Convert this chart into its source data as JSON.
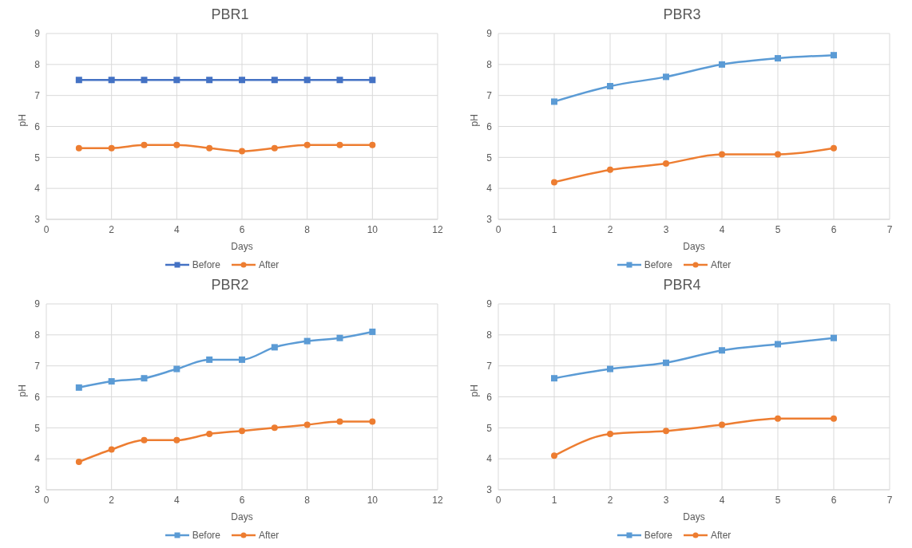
{
  "chart_data": [
    {
      "type": "line",
      "title": "PBR1",
      "xlabel": "Days",
      "ylabel": "pH",
      "x": [
        1,
        2,
        3,
        4,
        5,
        6,
        7,
        8,
        9,
        10
      ],
      "xlim": [
        0,
        12
      ],
      "xticks": [
        0,
        2,
        4,
        6,
        8,
        10,
        12
      ],
      "ylim": [
        3,
        9
      ],
      "yticks": [
        3,
        4,
        5,
        6,
        7,
        8,
        9
      ],
      "grid": true,
      "legend": "bottom",
      "series": [
        {
          "name": "Before",
          "color": "#4472c4",
          "marker": "square",
          "values": [
            7.5,
            7.5,
            7.5,
            7.5,
            7.5,
            7.5,
            7.5,
            7.5,
            7.5,
            7.5
          ]
        },
        {
          "name": "After",
          "color": "#ed7d31",
          "marker": "circle",
          "values": [
            5.3,
            5.3,
            5.4,
            5.4,
            5.3,
            5.2,
            5.3,
            5.4,
            5.4,
            5.4
          ]
        }
      ]
    },
    {
      "type": "line",
      "title": "PBR3",
      "xlabel": "Days",
      "ylabel": "pH",
      "x": [
        1,
        2,
        3,
        4,
        5,
        6
      ],
      "xlim": [
        0,
        7
      ],
      "xticks": [
        0,
        1,
        2,
        3,
        4,
        5,
        6,
        7
      ],
      "ylim": [
        3,
        9
      ],
      "yticks": [
        3,
        4,
        5,
        6,
        7,
        8,
        9
      ],
      "grid": true,
      "legend": "bottom",
      "series": [
        {
          "name": "Before",
          "color": "#5b9bd5",
          "marker": "square",
          "values": [
            6.8,
            7.3,
            7.6,
            8.0,
            8.2,
            8.3
          ]
        },
        {
          "name": "After",
          "color": "#ed7d31",
          "marker": "circle",
          "values": [
            4.2,
            4.6,
            4.8,
            5.1,
            5.1,
            5.3
          ]
        }
      ]
    },
    {
      "type": "line",
      "title": "PBR2",
      "xlabel": "Days",
      "ylabel": "pH",
      "x": [
        1,
        2,
        3,
        4,
        5,
        6,
        7,
        8,
        9,
        10
      ],
      "xlim": [
        0,
        12
      ],
      "xticks": [
        0,
        2,
        4,
        6,
        8,
        10,
        12
      ],
      "ylim": [
        3,
        9
      ],
      "yticks": [
        3,
        4,
        5,
        6,
        7,
        8,
        9
      ],
      "grid": true,
      "legend": "bottom",
      "series": [
        {
          "name": "Before",
          "color": "#5b9bd5",
          "marker": "square",
          "values": [
            6.3,
            6.5,
            6.6,
            6.9,
            7.2,
            7.2,
            7.6,
            7.8,
            7.9,
            8.1
          ]
        },
        {
          "name": "After",
          "color": "#ed7d31",
          "marker": "circle",
          "values": [
            3.9,
            4.3,
            4.6,
            4.6,
            4.8,
            4.9,
            5.0,
            5.1,
            5.2,
            5.2
          ]
        }
      ]
    },
    {
      "type": "line",
      "title": "PBR4",
      "xlabel": "Days",
      "ylabel": "pH",
      "x": [
        1,
        2,
        3,
        4,
        5,
        6
      ],
      "xlim": [
        0,
        7
      ],
      "xticks": [
        0,
        1,
        2,
        3,
        4,
        5,
        6,
        7
      ],
      "ylim": [
        3,
        9
      ],
      "yticks": [
        3,
        4,
        5,
        6,
        7,
        8,
        9
      ],
      "grid": true,
      "legend": "bottom",
      "series": [
        {
          "name": "Before",
          "color": "#5b9bd5",
          "marker": "square",
          "values": [
            6.6,
            6.9,
            7.1,
            7.5,
            7.7,
            7.9
          ]
        },
        {
          "name": "After",
          "color": "#ed7d31",
          "marker": "circle",
          "values": [
            4.1,
            4.8,
            4.9,
            5.1,
            5.3,
            5.3
          ]
        }
      ]
    }
  ]
}
